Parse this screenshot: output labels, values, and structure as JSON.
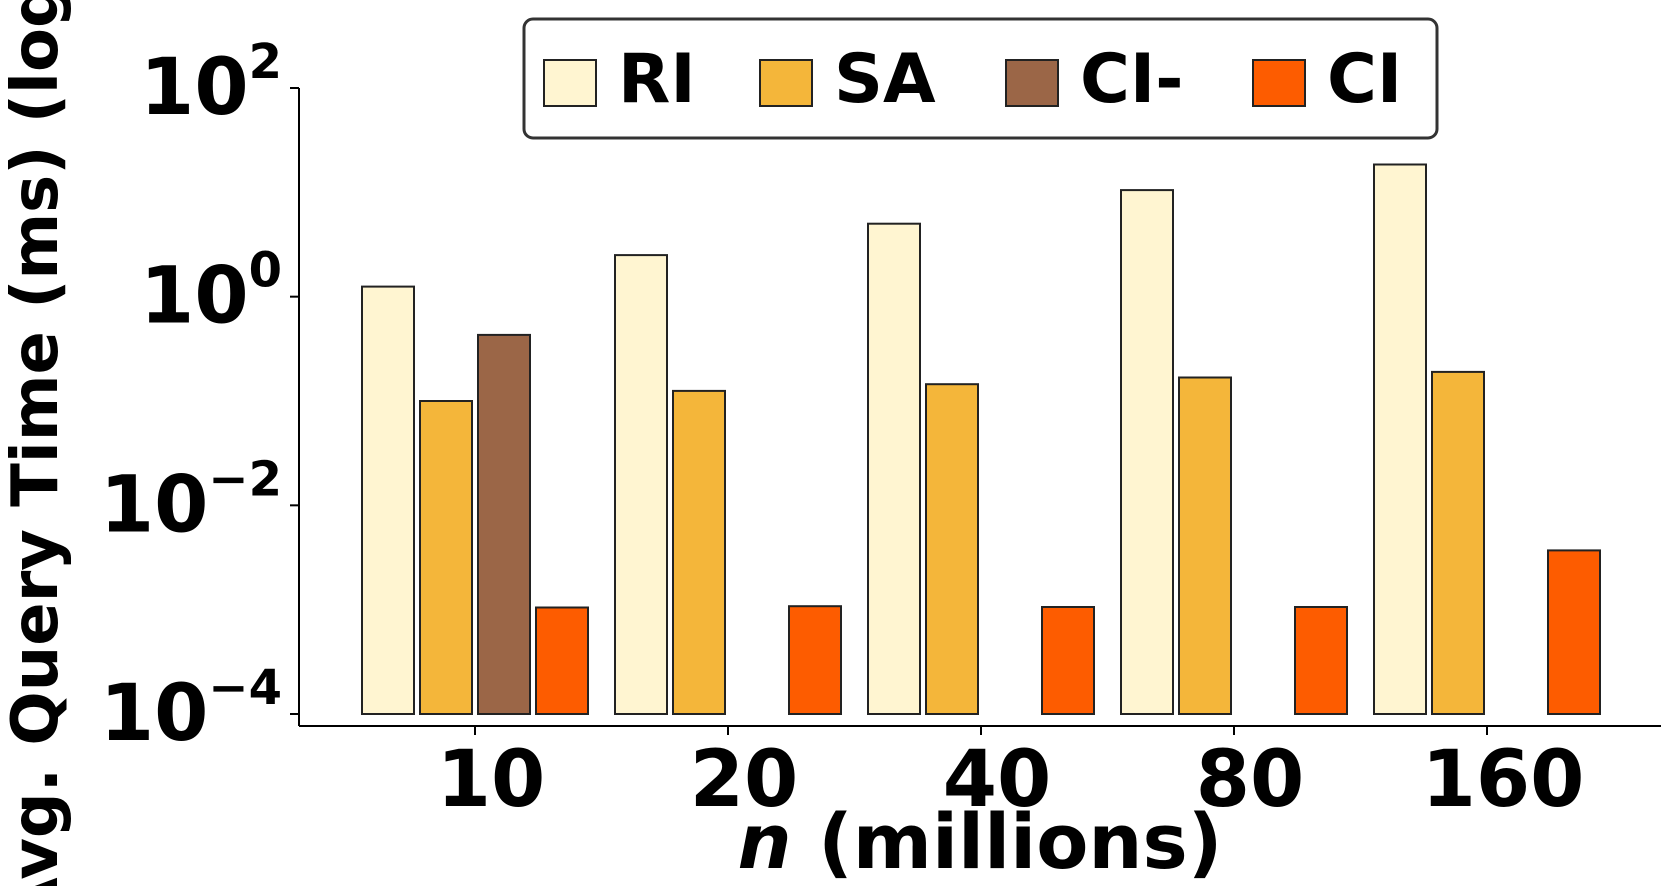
{
  "chart_data": {
    "type": "bar",
    "scale": "log",
    "xlabel_var": "n",
    "xlabel_rest": " (millions)",
    "ylabel": "Avg. Query Time (ms) (log)",
    "categories": [
      "10",
      "20",
      "40",
      "80",
      "160"
    ],
    "ylim": [
      0.0001,
      100
    ],
    "yticks": [
      {
        "base": "10",
        "exp": "2"
      },
      {
        "base": "10",
        "exp": "0"
      },
      {
        "base": "10",
        "exp": "−2"
      },
      {
        "base": "10",
        "exp": "−4"
      }
    ],
    "ytick_values": [
      100,
      1,
      0.01,
      0.0001
    ],
    "series": [
      {
        "name": "RI",
        "color": "#fff5d1",
        "values": [
          1.25,
          2.5,
          5.0,
          10.5,
          18.5
        ]
      },
      {
        "name": "SA",
        "color": "#f4b63a",
        "values": [
          0.1,
          0.125,
          0.145,
          0.168,
          0.19
        ]
      },
      {
        "name": "CI-",
        "color": "#9b6647",
        "values": [
          0.43,
          null,
          null,
          null,
          null
        ]
      },
      {
        "name": "CI",
        "color": "#fd5c00",
        "values": [
          0.00105,
          0.00108,
          0.00106,
          0.00106,
          0.0037
        ]
      }
    ],
    "legend_position": "top"
  }
}
